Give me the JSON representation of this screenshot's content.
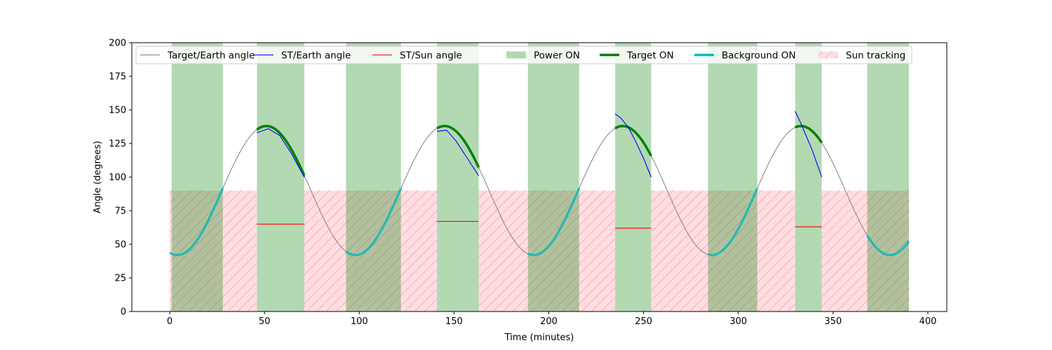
{
  "chart_data": {
    "type": "line",
    "title": "",
    "xlabel": "Time (minutes)",
    "ylabel": "Angle (degrees)",
    "xlim": [
      -20,
      410
    ],
    "ylim": [
      0,
      200
    ],
    "xticks": [
      0,
      50,
      100,
      150,
      200,
      250,
      300,
      350,
      400
    ],
    "yticks": [
      0,
      25,
      50,
      75,
      100,
      125,
      150,
      175,
      200
    ],
    "grid": false,
    "legend_position": "top",
    "legend": [
      {
        "label": "Target/Earth angle",
        "kind": "line",
        "color": "#808080"
      },
      {
        "label": "ST/Earth angle",
        "kind": "line",
        "color": "#0000ff"
      },
      {
        "label": "ST/Sun angle",
        "kind": "line",
        "color": "#ff0000"
      },
      {
        "label": "Power ON",
        "kind": "patch",
        "color": "#b2d8b2"
      },
      {
        "label": "Target ON",
        "kind": "thickline",
        "color": "#008000"
      },
      {
        "label": "Background ON",
        "kind": "thickline",
        "color": "#00bfbf"
      },
      {
        "label": "Sun tracking",
        "kind": "hatch",
        "color": "#ffdde1"
      }
    ],
    "target_earth_angle": {
      "model": "sinusoid",
      "mean": 90,
      "amplitude": 48,
      "period_minutes": 94,
      "minimum_at_minutes": 4,
      "x_range": [
        0,
        390
      ],
      "color": "#808080"
    },
    "power_on_intervals": [
      [
        1,
        28
      ],
      [
        46,
        71
      ],
      [
        93,
        122
      ],
      [
        141,
        163
      ],
      [
        189,
        216
      ],
      [
        235,
        254
      ],
      [
        284,
        310
      ],
      [
        330,
        344
      ],
      [
        368,
        390
      ]
    ],
    "target_on_intervals": [
      [
        46,
        71
      ],
      [
        141,
        163
      ],
      [
        235,
        254
      ],
      [
        330,
        344
      ]
    ],
    "background_on_intervals": [
      [
        0,
        28
      ],
      [
        93,
        122
      ],
      [
        189,
        216
      ],
      [
        284,
        310
      ],
      [
        368,
        390
      ]
    ],
    "sun_tracking": {
      "intervals": [
        [
          0,
          46
        ],
        [
          71,
          141
        ],
        [
          163,
          235
        ],
        [
          254,
          330
        ],
        [
          344,
          390
        ]
      ],
      "angle_limit": 90
    },
    "st_earth_angle_segments": [
      {
        "x": [
          46,
          52,
          58,
          64,
          71
        ],
        "y": [
          133,
          136,
          131,
          118,
          100
        ]
      },
      {
        "x": [
          141,
          146,
          151,
          157,
          163
        ],
        "y": [
          134,
          135,
          127,
          114,
          101
        ]
      },
      {
        "x": [
          235,
          238,
          242,
          246,
          250,
          254
        ],
        "y": [
          147,
          144,
          137,
          126,
          114,
          100
        ]
      },
      {
        "x": [
          330,
          333,
          336,
          339,
          342,
          344
        ],
        "y": [
          149,
          140,
          130,
          120,
          108,
          100
        ]
      }
    ],
    "st_sun_angle_segments": [
      {
        "x": [
          46,
          71
        ],
        "y": [
          65,
          65
        ]
      },
      {
        "x": [
          141,
          163
        ],
        "y": [
          67,
          67
        ]
      },
      {
        "x": [
          235,
          254
        ],
        "y": [
          62,
          62
        ]
      },
      {
        "x": [
          330,
          344
        ],
        "y": [
          63,
          63
        ]
      }
    ]
  }
}
